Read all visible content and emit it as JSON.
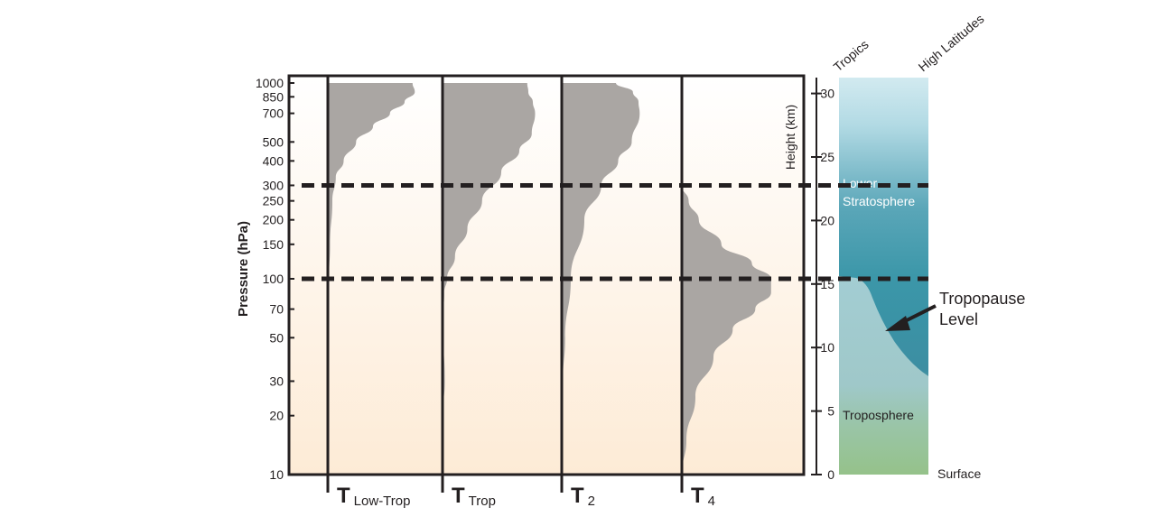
{
  "chart_data": {
    "type": "area",
    "y_axis_left": {
      "label": "Pressure (hPa)",
      "scale": "log",
      "range": [
        1000,
        10
      ],
      "ticks": [
        "10",
        "20",
        "30",
        "50",
        "70",
        "100",
        "150",
        "200",
        "250",
        "300",
        "400",
        "500",
        "700",
        "850",
        "1000"
      ]
    },
    "y_axis_right": {
      "label": "Height (km)",
      "ticks": [
        "0",
        "5",
        "10",
        "15",
        "20",
        "25",
        "30"
      ]
    },
    "reference_lines_hPa": [
      100,
      300
    ],
    "series": [
      {
        "name": "T Low-Trop",
        "symbol": "T",
        "subscript": "Low-Trop",
        "profile": [
          [
            1000,
            0.75
          ],
          [
            900,
            0.77
          ],
          [
            800,
            0.68
          ],
          [
            700,
            0.55
          ],
          [
            600,
            0.4
          ],
          [
            500,
            0.25
          ],
          [
            400,
            0.14
          ],
          [
            330,
            0.07
          ],
          [
            250,
            0.04
          ],
          [
            150,
            0.02
          ],
          [
            100,
            0.01
          ],
          [
            50,
            0.012
          ],
          [
            20,
            0.01
          ],
          [
            10,
            0.0
          ]
        ]
      },
      {
        "name": "T Trop",
        "symbol": "T",
        "subscript": "Trop",
        "profile": [
          [
            1000,
            0.75
          ],
          [
            900,
            0.76
          ],
          [
            800,
            0.8
          ],
          [
            700,
            0.82
          ],
          [
            550,
            0.79
          ],
          [
            450,
            0.68
          ],
          [
            350,
            0.52
          ],
          [
            250,
            0.35
          ],
          [
            180,
            0.22
          ],
          [
            130,
            0.11
          ],
          [
            100,
            0.04
          ],
          [
            85,
            0.015
          ],
          [
            60,
            0.0
          ],
          [
            30,
            0.02
          ],
          [
            20,
            0.0
          ]
        ]
      },
      {
        "name": "T 2",
        "symbol": "T",
        "subscript": "2",
        "profile": [
          [
            1000,
            0.48
          ],
          [
            900,
            0.63
          ],
          [
            800,
            0.68
          ],
          [
            700,
            0.69
          ],
          [
            500,
            0.62
          ],
          [
            400,
            0.5
          ],
          [
            300,
            0.35
          ],
          [
            200,
            0.2
          ],
          [
            100,
            0.08
          ],
          [
            50,
            0.03
          ],
          [
            30,
            0.01
          ],
          [
            20,
            0.0
          ]
        ]
      },
      {
        "name": "T 4",
        "symbol": "T",
        "subscript": "4",
        "profile": [
          [
            300,
            0.0
          ],
          [
            250,
            0.06
          ],
          [
            200,
            0.15
          ],
          [
            150,
            0.35
          ],
          [
            120,
            0.62
          ],
          [
            100,
            0.79
          ],
          [
            85,
            0.79
          ],
          [
            70,
            0.65
          ],
          [
            55,
            0.45
          ],
          [
            40,
            0.28
          ],
          [
            25,
            0.12
          ],
          [
            15,
            0.04
          ],
          [
            10,
            0.0
          ]
        ]
      }
    ]
  },
  "column": {
    "header_left": "Tropics",
    "header_right": "High Latitudes",
    "label_stratosphere_line1": "Lower",
    "label_stratosphere_line2": "Stratosphere",
    "label_troposphere": "Troposphere",
    "label_surface": "Surface"
  },
  "annotation": {
    "line1": "Tropopause",
    "line2": "Level"
  },
  "colors": {
    "weighting_fill": "#aaa6a3",
    "stratosphere": "#3c97a9",
    "troposphere": "#95c28a",
    "frame": "#231f20",
    "background_top": "#ffffff",
    "background_bottom": "#fdebd6"
  }
}
